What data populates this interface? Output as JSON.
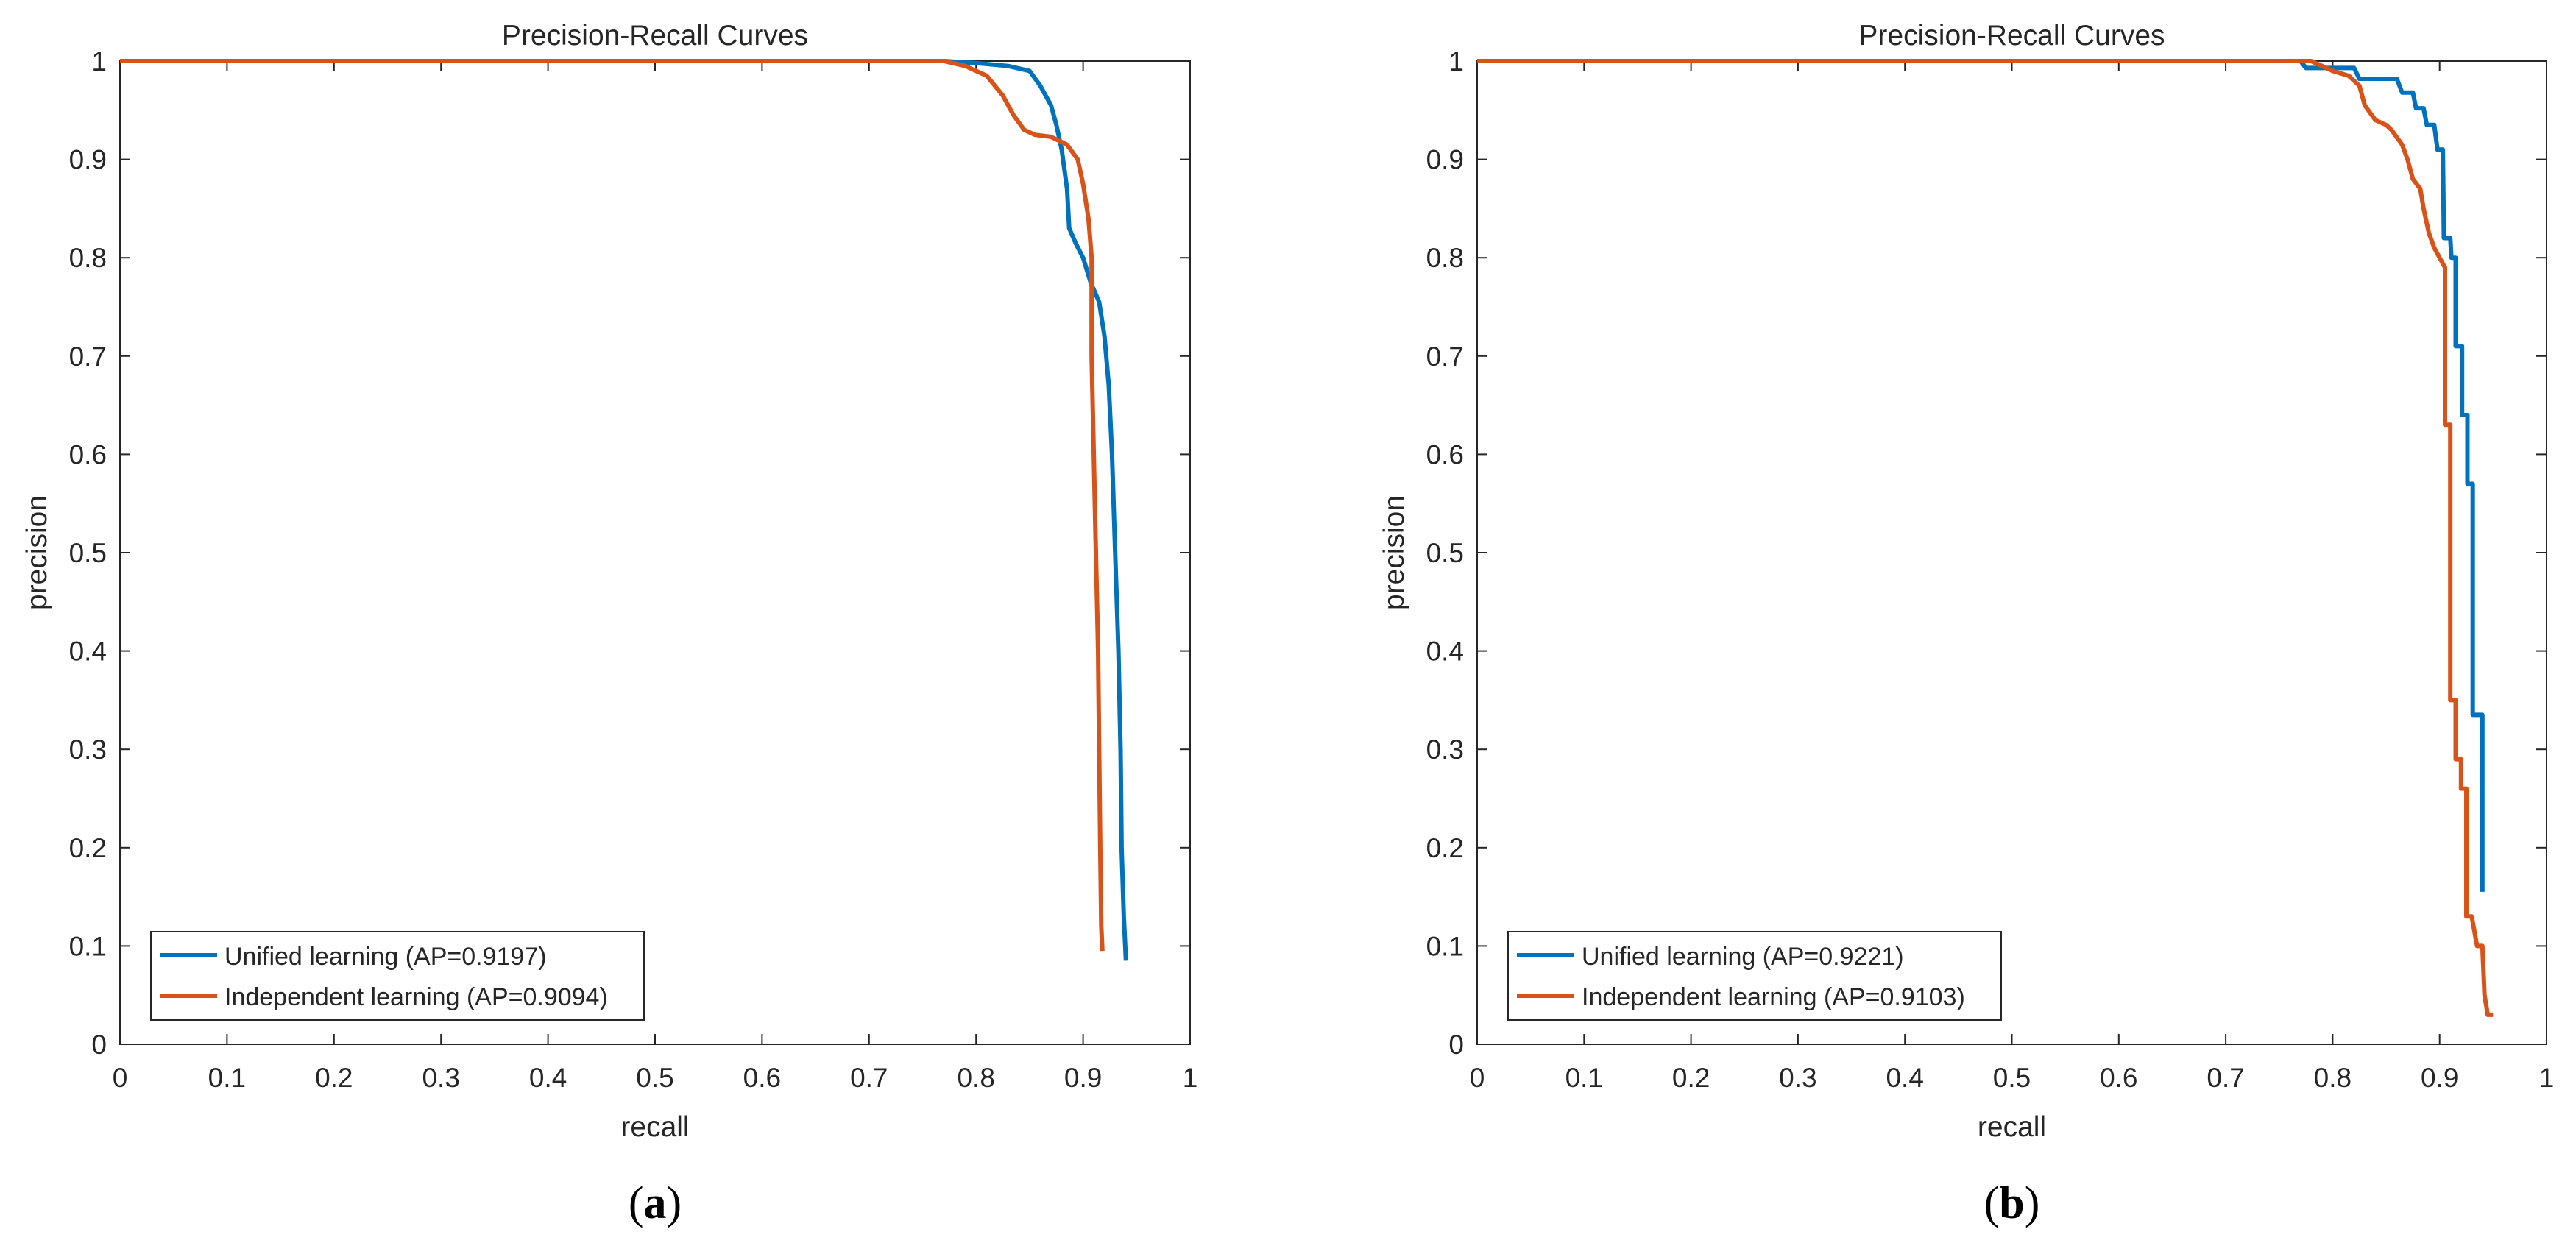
{
  "chart_data": [
    {
      "type": "line",
      "panel": "a",
      "caption": "a",
      "title": "Precision-Recall Curves",
      "xlabel": "recall",
      "ylabel": "precision",
      "xlim": [
        0,
        1
      ],
      "ylim": [
        0,
        1
      ],
      "xticks": [
        "0",
        "0.1",
        "0.2",
        "0.3",
        "0.4",
        "0.5",
        "0.6",
        "0.7",
        "0.8",
        "0.9",
        "1"
      ],
      "yticks": [
        "0",
        "0.1",
        "0.2",
        "0.3",
        "0.4",
        "0.5",
        "0.6",
        "0.7",
        "0.8",
        "0.9",
        "1"
      ],
      "grid": false,
      "legend_position": "bottom-left",
      "series": [
        {
          "name": "Unified learning (AP=0.9197)",
          "color": "#0072bd",
          "points": [
            [
              0,
              1
            ],
            [
              0.77,
              1
            ],
            [
              0.8,
              0.998
            ],
            [
              0.83,
              0.995
            ],
            [
              0.85,
              0.99
            ],
            [
              0.86,
              0.975
            ],
            [
              0.87,
              0.955
            ],
            [
              0.875,
              0.935
            ],
            [
              0.88,
              0.91
            ],
            [
              0.885,
              0.87
            ],
            [
              0.887,
              0.83
            ],
            [
              0.893,
              0.815
            ],
            [
              0.9,
              0.8
            ],
            [
              0.907,
              0.775
            ],
            [
              0.915,
              0.755
            ],
            [
              0.92,
              0.72
            ],
            [
              0.924,
              0.67
            ],
            [
              0.927,
              0.6
            ],
            [
              0.93,
              0.5
            ],
            [
              0.933,
              0.4
            ],
            [
              0.935,
              0.3
            ],
            [
              0.936,
              0.2
            ],
            [
              0.938,
              0.13
            ],
            [
              0.94,
              0.085
            ]
          ]
        },
        {
          "name": "Independent learning (AP=0.9094)",
          "color": "#d95319",
          "points": [
            [
              0,
              1
            ],
            [
              0.77,
              1
            ],
            [
              0.79,
              0.995
            ],
            [
              0.81,
              0.985
            ],
            [
              0.825,
              0.965
            ],
            [
              0.835,
              0.945
            ],
            [
              0.845,
              0.93
            ],
            [
              0.855,
              0.925
            ],
            [
              0.87,
              0.923
            ],
            [
              0.885,
              0.915
            ],
            [
              0.895,
              0.9
            ],
            [
              0.9,
              0.875
            ],
            [
              0.905,
              0.84
            ],
            [
              0.908,
              0.8
            ],
            [
              0.908,
              0.75
            ],
            [
              0.908,
              0.7
            ],
            [
              0.91,
              0.6
            ],
            [
              0.912,
              0.5
            ],
            [
              0.914,
              0.4
            ],
            [
              0.915,
              0.3
            ],
            [
              0.916,
              0.2
            ],
            [
              0.917,
              0.12
            ],
            [
              0.918,
              0.095
            ]
          ]
        }
      ]
    },
    {
      "type": "line",
      "panel": "b",
      "caption": "b",
      "title": "Precision-Recall Curves",
      "xlabel": "recall",
      "ylabel": "precision",
      "xlim": [
        0,
        1
      ],
      "ylim": [
        0,
        1
      ],
      "xticks": [
        "0",
        "0.1",
        "0.2",
        "0.3",
        "0.4",
        "0.5",
        "0.6",
        "0.7",
        "0.8",
        "0.9",
        "1"
      ],
      "yticks": [
        "0",
        "0.1",
        "0.2",
        "0.3",
        "0.4",
        "0.5",
        "0.6",
        "0.7",
        "0.8",
        "0.9",
        "1"
      ],
      "grid": false,
      "legend_position": "bottom-left",
      "series": [
        {
          "name": "Unified learning (AP=0.9221)",
          "color": "#0072bd",
          "points": [
            [
              0,
              1
            ],
            [
              0.77,
              1
            ],
            [
              0.775,
              0.993
            ],
            [
              0.82,
              0.993
            ],
            [
              0.825,
              0.982
            ],
            [
              0.86,
              0.982
            ],
            [
              0.865,
              0.968
            ],
            [
              0.875,
              0.968
            ],
            [
              0.878,
              0.952
            ],
            [
              0.885,
              0.952
            ],
            [
              0.888,
              0.935
            ],
            [
              0.895,
              0.935
            ],
            [
              0.898,
              0.91
            ],
            [
              0.903,
              0.91
            ],
            [
              0.904,
              0.82
            ],
            [
              0.91,
              0.82
            ],
            [
              0.911,
              0.8
            ],
            [
              0.915,
              0.8
            ],
            [
              0.915,
              0.71
            ],
            [
              0.921,
              0.71
            ],
            [
              0.921,
              0.64
            ],
            [
              0.926,
              0.64
            ],
            [
              0.926,
              0.57
            ],
            [
              0.931,
              0.57
            ],
            [
              0.931,
              0.335
            ],
            [
              0.94,
              0.335
            ],
            [
              0.94,
              0.155
            ]
          ]
        },
        {
          "name": "Independent learning (AP=0.9103)",
          "color": "#d95319",
          "points": [
            [
              0,
              1
            ],
            [
              0.78,
              1
            ],
            [
              0.8,
              0.99
            ],
            [
              0.815,
              0.985
            ],
            [
              0.825,
              0.975
            ],
            [
              0.83,
              0.955
            ],
            [
              0.84,
              0.94
            ],
            [
              0.85,
              0.935
            ],
            [
              0.855,
              0.93
            ],
            [
              0.865,
              0.915
            ],
            [
              0.87,
              0.9
            ],
            [
              0.875,
              0.88
            ],
            [
              0.882,
              0.87
            ],
            [
              0.885,
              0.85
            ],
            [
              0.89,
              0.825
            ],
            [
              0.895,
              0.81
            ],
            [
              0.9,
              0.8
            ],
            [
              0.905,
              0.79
            ],
            [
              0.905,
              0.63
            ],
            [
              0.91,
              0.63
            ],
            [
              0.91,
              0.35
            ],
            [
              0.915,
              0.35
            ],
            [
              0.915,
              0.29
            ],
            [
              0.92,
              0.29
            ],
            [
              0.92,
              0.26
            ],
            [
              0.925,
              0.26
            ],
            [
              0.925,
              0.13
            ],
            [
              0.93,
              0.13
            ],
            [
              0.935,
              0.1
            ],
            [
              0.94,
              0.1
            ],
            [
              0.942,
              0.05
            ],
            [
              0.945,
              0.03
            ],
            [
              0.95,
              0.03
            ]
          ]
        }
      ]
    }
  ]
}
